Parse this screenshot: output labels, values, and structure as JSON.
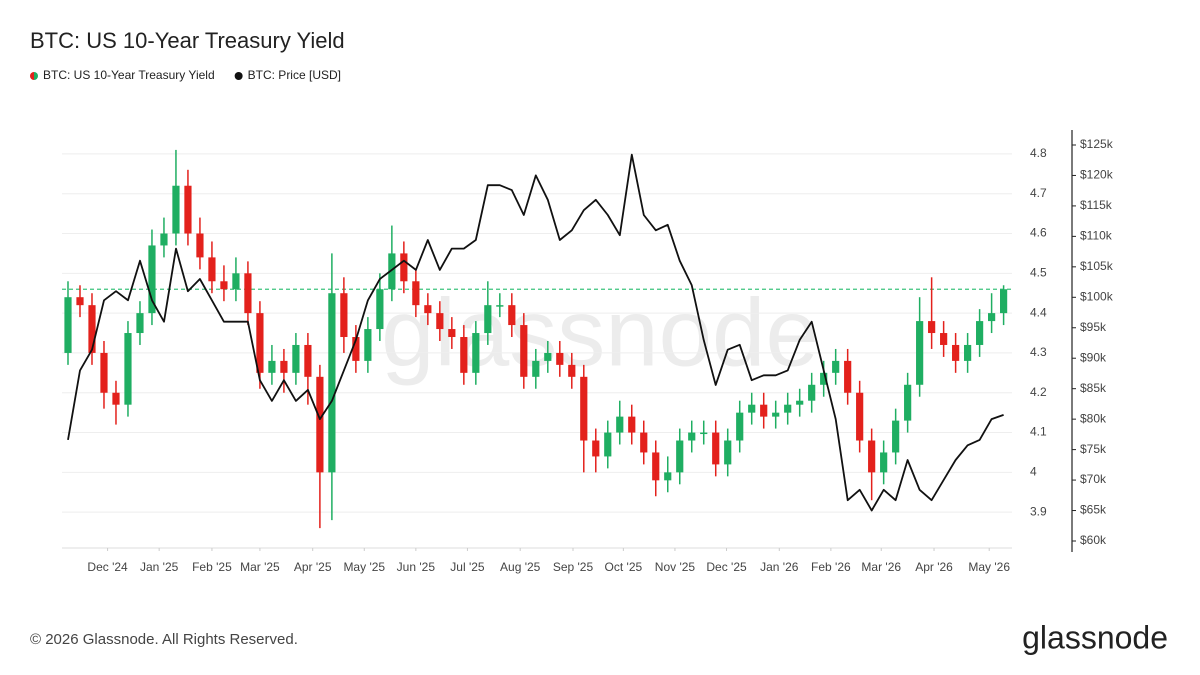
{
  "chart_data": {
    "type": "candlestick",
    "title": "BTC: US 10-Year Treasury Yield",
    "watermark": "glassnode",
    "x": [
      0,
      1,
      2,
      3,
      4,
      5,
      6,
      7,
      8,
      9,
      10,
      11,
      12,
      13,
      14,
      15,
      16,
      17,
      18,
      19,
      20,
      21,
      22,
      23,
      24,
      25,
      26,
      27,
      28,
      29,
      30,
      31,
      32,
      33,
      34,
      35,
      36,
      37,
      38,
      39,
      40,
      41,
      42,
      43,
      44,
      45,
      46,
      47,
      48,
      49,
      50,
      51,
      52,
      53,
      54,
      55,
      56,
      57,
      58,
      59,
      60,
      61,
      62,
      63,
      64,
      65,
      66,
      67,
      68,
      69,
      70,
      71,
      72,
      73,
      74,
      75,
      76,
      77,
      78
    ],
    "xlim": [
      -0.5,
      78.7
    ],
    "xticks": [
      {
        "value": 3.3,
        "label": "Dec '24"
      },
      {
        "value": 7.6,
        "label": "Jan '25"
      },
      {
        "value": 12.0,
        "label": "Feb '25"
      },
      {
        "value": 16.0,
        "label": "Mar '25"
      },
      {
        "value": 20.4,
        "label": "Apr '25"
      },
      {
        "value": 24.7,
        "label": "May '25"
      },
      {
        "value": 29.0,
        "label": "Jun '25"
      },
      {
        "value": 33.3,
        "label": "Jul '25"
      },
      {
        "value": 37.7,
        "label": "Aug '25"
      },
      {
        "value": 42.1,
        "label": "Sep '25"
      },
      {
        "value": 46.3,
        "label": "Oct '25"
      },
      {
        "value": 50.6,
        "label": "Nov '25"
      },
      {
        "value": 54.9,
        "label": "Dec '25"
      },
      {
        "value": 59.3,
        "label": "Jan '26"
      },
      {
        "value": 63.6,
        "label": "Feb '26"
      },
      {
        "value": 67.8,
        "label": "Mar '26"
      },
      {
        "value": 72.2,
        "label": "Apr '26"
      },
      {
        "value": 76.8,
        "label": "May '26"
      }
    ],
    "ylim": [
      3.81,
      4.86
    ],
    "yticks": [
      3.9,
      4,
      4.1,
      4.2,
      4.3,
      4.4,
      4.5,
      4.6,
      4.7,
      4.8
    ],
    "y2lim": [
      58850,
      127460
    ],
    "y2ticks": [
      {
        "value": 60000,
        "label": "$60k"
      },
      {
        "value": 65000,
        "label": "$65k"
      },
      {
        "value": 70000,
        "label": "$70k"
      },
      {
        "value": 75000,
        "label": "$75k"
      },
      {
        "value": 80000,
        "label": "$80k"
      },
      {
        "value": 85000,
        "label": "$85k"
      },
      {
        "value": 90000,
        "label": "$90k"
      },
      {
        "value": 95000,
        "label": "$95k"
      },
      {
        "value": 100000,
        "label": "$100k"
      },
      {
        "value": 105000,
        "label": "$105k"
      },
      {
        "value": 110000,
        "label": "$110k"
      },
      {
        "value": 115000,
        "label": "$115k"
      },
      {
        "value": 120000,
        "label": "$120k"
      },
      {
        "value": 125000,
        "label": "$125k"
      }
    ],
    "grid": true,
    "reference_line": {
      "value": 4.46,
      "color": "#3cc47c"
    },
    "series": [
      {
        "name": "BTC: US 10-Year Treasury Yield",
        "type": "candlestick",
        "up_color": "#1fae62",
        "down_color": "#e3211c",
        "open": [
          4.3,
          4.44,
          4.42,
          4.3,
          4.2,
          4.17,
          4.35,
          4.4,
          4.57,
          4.6,
          4.72,
          4.6,
          4.54,
          4.48,
          4.46,
          4.5,
          4.4,
          4.25,
          4.28,
          4.25,
          4.32,
          4.24,
          4.0,
          4.45,
          4.34,
          4.28,
          4.36,
          4.46,
          4.55,
          4.48,
          4.42,
          4.4,
          4.36,
          4.34,
          4.25,
          4.35,
          4.42,
          4.42,
          4.37,
          4.24,
          4.28,
          4.3,
          4.27,
          4.24,
          4.08,
          4.04,
          4.1,
          4.14,
          4.1,
          4.05,
          3.98,
          4.0,
          4.08,
          4.1,
          4.1,
          4.02,
          4.08,
          4.15,
          4.17,
          4.14,
          4.15,
          4.17,
          4.18,
          4.22,
          4.25,
          4.28,
          4.2,
          4.08,
          4.0,
          4.05,
          4.13,
          4.22,
          4.38,
          4.35,
          4.32,
          4.28,
          4.32,
          4.38,
          4.4
        ],
        "high": [
          4.48,
          4.47,
          4.45,
          4.33,
          4.23,
          4.38,
          4.43,
          4.61,
          4.64,
          4.81,
          4.76,
          4.64,
          4.58,
          4.52,
          4.54,
          4.53,
          4.43,
          4.32,
          4.31,
          4.35,
          4.35,
          4.27,
          4.55,
          4.49,
          4.37,
          4.39,
          4.5,
          4.62,
          4.58,
          4.51,
          4.45,
          4.43,
          4.39,
          4.37,
          4.38,
          4.48,
          4.45,
          4.45,
          4.4,
          4.31,
          4.33,
          4.33,
          4.3,
          4.27,
          4.11,
          4.13,
          4.18,
          4.17,
          4.13,
          4.08,
          4.04,
          4.11,
          4.13,
          4.13,
          4.13,
          4.11,
          4.18,
          4.2,
          4.2,
          4.18,
          4.2,
          4.21,
          4.25,
          4.28,
          4.31,
          4.31,
          4.23,
          4.11,
          4.08,
          4.16,
          4.25,
          4.44,
          4.49,
          4.38,
          4.35,
          4.35,
          4.41,
          4.45,
          4.47
        ],
        "low": [
          4.27,
          4.39,
          4.27,
          4.16,
          4.12,
          4.14,
          4.32,
          4.37,
          4.54,
          4.57,
          4.57,
          4.51,
          4.45,
          4.43,
          4.43,
          4.37,
          4.21,
          4.22,
          4.2,
          4.22,
          4.17,
          3.86,
          3.88,
          4.3,
          4.25,
          4.25,
          4.33,
          4.43,
          4.45,
          4.39,
          4.37,
          4.33,
          4.31,
          4.22,
          4.22,
          4.32,
          4.39,
          4.34,
          4.21,
          4.21,
          4.25,
          4.24,
          4.21,
          4.0,
          4.0,
          4.01,
          4.07,
          4.07,
          4.02,
          3.94,
          3.95,
          3.97,
          4.05,
          4.07,
          3.99,
          3.99,
          4.05,
          4.12,
          4.11,
          4.11,
          4.12,
          4.14,
          4.15,
          4.19,
          4.22,
          4.17,
          4.05,
          3.93,
          3.97,
          4.02,
          4.1,
          4.19,
          4.31,
          4.29,
          4.25,
          4.25,
          4.29,
          4.35,
          4.37
        ],
        "close": [
          4.44,
          4.42,
          4.3,
          4.2,
          4.17,
          4.35,
          4.4,
          4.57,
          4.6,
          4.72,
          4.6,
          4.54,
          4.48,
          4.46,
          4.5,
          4.4,
          4.25,
          4.28,
          4.25,
          4.32,
          4.24,
          4.0,
          4.45,
          4.34,
          4.28,
          4.36,
          4.46,
          4.55,
          4.48,
          4.42,
          4.4,
          4.36,
          4.34,
          4.25,
          4.35,
          4.42,
          4.42,
          4.37,
          4.24,
          4.28,
          4.3,
          4.27,
          4.24,
          4.08,
          4.04,
          4.1,
          4.14,
          4.1,
          4.05,
          3.98,
          4.0,
          4.08,
          4.1,
          4.1,
          4.02,
          4.08,
          4.15,
          4.17,
          4.14,
          4.15,
          4.17,
          4.18,
          4.22,
          4.25,
          4.28,
          4.2,
          4.08,
          4.0,
          4.05,
          4.13,
          4.22,
          4.38,
          4.35,
          4.32,
          4.28,
          4.32,
          4.38,
          4.4,
          4.46
        ]
      },
      {
        "name": "BTC: Price [USD]",
        "type": "line",
        "axis": "y2",
        "color": "#111111",
        "values": [
          76600,
          88000,
          91400,
          99500,
          101000,
          99500,
          106000,
          99500,
          96000,
          108000,
          101000,
          103000,
          99500,
          96000,
          96000,
          96000,
          86400,
          83000,
          86400,
          83000,
          84800,
          80000,
          83000,
          88000,
          93000,
          99500,
          103000,
          104500,
          106000,
          104500,
          109400,
          104500,
          108000,
          108000,
          109400,
          118400,
          118400,
          117600,
          113500,
          120000,
          116000,
          109400,
          111000,
          114300,
          116000,
          113500,
          110200,
          123400,
          113500,
          111000,
          111900,
          106000,
          102000,
          93000,
          85600,
          91400,
          92200,
          86400,
          87200,
          87200,
          88000,
          93000,
          96000,
          88000,
          80000,
          66700,
          68400,
          65000,
          68400,
          66700,
          73300,
          68400,
          66700,
          70000,
          73300,
          75700,
          76600,
          80000,
          80700
        ]
      }
    ]
  },
  "footer": {
    "copyright": "© 2026 Glassnode. All Rights Reserved.",
    "logo": "glassnode"
  }
}
